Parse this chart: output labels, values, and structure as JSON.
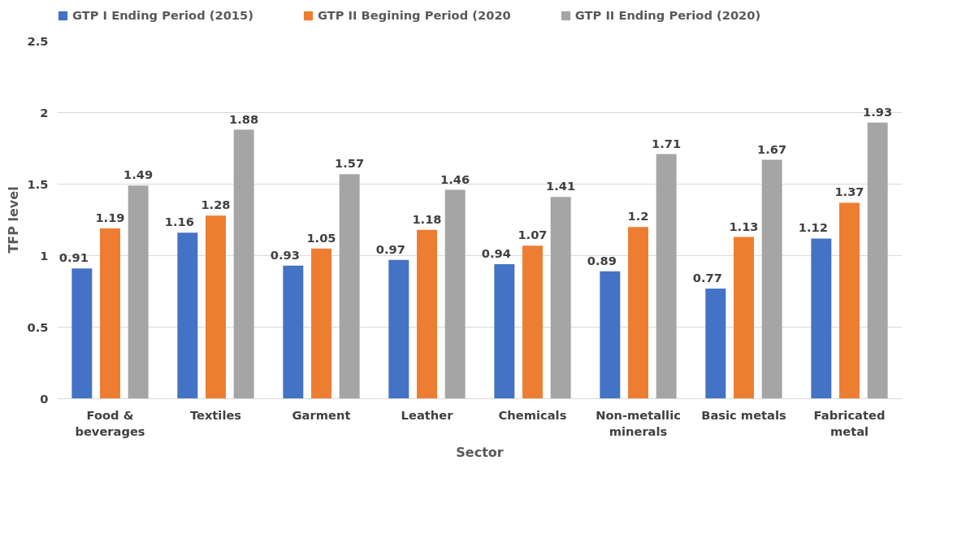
{
  "chart_data": {
    "type": "bar",
    "xlabel": "Sector",
    "ylabel": "TFP level",
    "categories": [
      "Food & beverages",
      "Textiles",
      "Garment",
      "Leather",
      "Chemicals",
      "Non-metallic minerals",
      "Basic metals",
      "Fabricated metal"
    ],
    "series": [
      {
        "name": "GTP I Ending Period (2015)",
        "color": "#4472c4",
        "values": [
          0.91,
          1.16,
          0.93,
          0.97,
          0.94,
          0.89,
          0.77,
          1.12
        ]
      },
      {
        "name": "GTP II Begining Period (2020",
        "color": "#ed7d31",
        "values": [
          1.19,
          1.28,
          1.05,
          1.18,
          1.07,
          1.2,
          1.13,
          1.37
        ]
      },
      {
        "name": "GTP II Ending Period (2020)",
        "color": "#a5a5a5",
        "values": [
          1.49,
          1.88,
          1.57,
          1.46,
          1.41,
          1.71,
          1.67,
          1.93
        ]
      }
    ],
    "ylim": [
      0,
      2.5
    ],
    "yticks": [
      0,
      0.5,
      1,
      1.5,
      2,
      2.5
    ],
    "grid": "y",
    "legend": "top",
    "data_labels": true
  }
}
